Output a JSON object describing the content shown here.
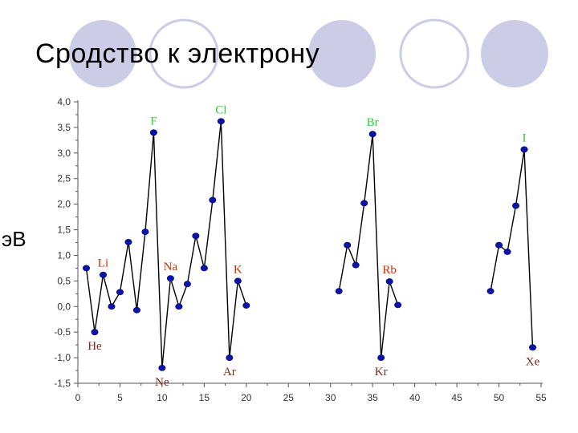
{
  "page": {
    "title": "Сродство к электрону",
    "unit_label": "эВ"
  },
  "decor": {
    "circle_fill": "#cccce6",
    "circle_stroke": "#cccce6"
  },
  "chart_data": {
    "type": "line",
    "title": "Сродство к электрону",
    "ylabel": "эВ",
    "xlabel": "",
    "xlim": [
      -1,
      55
    ],
    "ylim": [
      -1.5,
      4.0
    ],
    "grid": false,
    "x_ticks": [
      0,
      5,
      10,
      15,
      20,
      25,
      30,
      35,
      40,
      45,
      50,
      55
    ],
    "x_tick_labels": [
      "0",
      "5",
      "10",
      "15",
      "20",
      "25",
      "30",
      "35",
      "40",
      "45",
      "50",
      "55"
    ],
    "y_ticks": [
      -1.5,
      -1.0,
      -0.5,
      0.0,
      0.5,
      1.0,
      1.5,
      2.0,
      2.5,
      3.0,
      3.5,
      4.0
    ],
    "y_tick_labels": [
      "-1,5",
      "-1,0",
      "-0,5",
      "0,0",
      "0,5",
      "1,0",
      "1,5",
      "2,0",
      "2,5",
      "3,0",
      "3,5",
      "4,0"
    ],
    "line_color": "#000000",
    "marker_color": "#0a14a8",
    "segments": [
      {
        "x": [
          1,
          2,
          3,
          4,
          5,
          6,
          7,
          8,
          9,
          10,
          11,
          12,
          13,
          14,
          15,
          16,
          17,
          18,
          19,
          20
        ],
        "y": [
          0.75,
          -0.5,
          0.62,
          0.0,
          0.28,
          1.26,
          -0.07,
          1.46,
          3.4,
          -1.2,
          0.55,
          0.0,
          0.44,
          1.38,
          0.75,
          2.08,
          3.62,
          -1.0,
          0.5,
          0.02
        ]
      },
      {
        "x": [
          31,
          32,
          33,
          34,
          35,
          36,
          37,
          38
        ],
        "y": [
          0.3,
          1.2,
          0.81,
          2.02,
          3.37,
          -1.0,
          0.49,
          0.03
        ]
      },
      {
        "x": [
          49,
          50,
          51,
          52,
          53,
          54
        ],
        "y": [
          0.3,
          1.2,
          1.07,
          1.97,
          3.07,
          -0.8
        ]
      }
    ],
    "annotations": [
      {
        "text": "F",
        "x": 9,
        "y": 3.4,
        "color": "#33cc33",
        "pos": "above"
      },
      {
        "text": "Cl",
        "x": 17,
        "y": 3.62,
        "color": "#33cc33",
        "pos": "above"
      },
      {
        "text": "Br",
        "x": 35,
        "y": 3.37,
        "color": "#33cc33",
        "pos": "above"
      },
      {
        "text": "I",
        "x": 53,
        "y": 3.07,
        "color": "#33cc33",
        "pos": "above"
      },
      {
        "text": "Li",
        "x": 3,
        "y": 0.62,
        "color": "#cc3300",
        "pos": "above"
      },
      {
        "text": "Na",
        "x": 11,
        "y": 0.55,
        "color": "#cc3300",
        "pos": "above"
      },
      {
        "text": "K",
        "x": 19,
        "y": 0.5,
        "color": "#cc3300",
        "pos": "above"
      },
      {
        "text": "Rb",
        "x": 37,
        "y": 0.49,
        "color": "#cc3300",
        "pos": "above"
      },
      {
        "text": "He",
        "x": 2,
        "y": -0.5,
        "color": "#7a2a1a",
        "pos": "below"
      },
      {
        "text": "Ne",
        "x": 10,
        "y": -1.2,
        "color": "#7a2a1a",
        "pos": "below"
      },
      {
        "text": "Ar",
        "x": 18,
        "y": -1.0,
        "color": "#7a2a1a",
        "pos": "below"
      },
      {
        "text": "Kr",
        "x": 36,
        "y": -1.0,
        "color": "#7a2a1a",
        "pos": "below"
      },
      {
        "text": "Xe",
        "x": 54,
        "y": -0.8,
        "color": "#7a2a1a",
        "pos": "below"
      }
    ]
  }
}
